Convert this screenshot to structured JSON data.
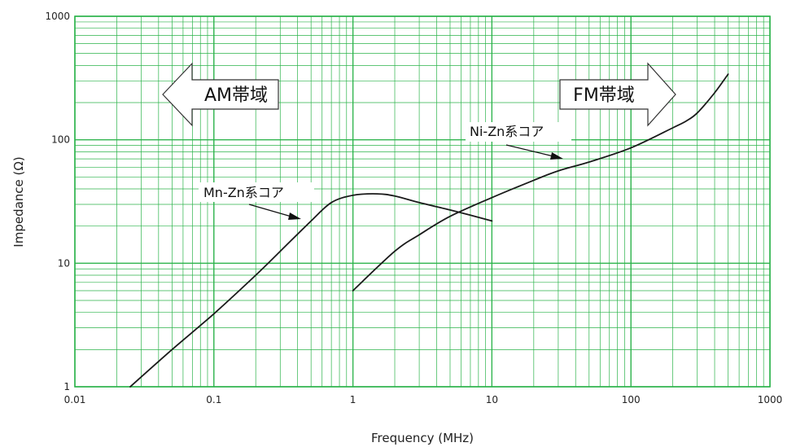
{
  "chart_data": {
    "type": "line",
    "title": "",
    "xlabel": "Frequency (MHz)",
    "ylabel": "Impedance (Ω)",
    "xscale": "log",
    "yscale": "log",
    "xlim": [
      0.01,
      1000
    ],
    "ylim": [
      1,
      1000
    ],
    "x_ticks": [
      "0.01",
      "0.1",
      "1",
      "10",
      "100",
      "1000"
    ],
    "y_ticks": [
      "1",
      "10",
      "100",
      "1000"
    ],
    "grid": true,
    "grid_color": "#2bb34a",
    "line_color": "#1a1a1a",
    "series": [
      {
        "name": "Mn-Zn系コア",
        "x": [
          0.025,
          0.05,
          0.1,
          0.2,
          0.3,
          0.5,
          0.7,
          1.0,
          1.5,
          2.0,
          3.0,
          5.0,
          7.0,
          10.0
        ],
        "y": [
          1.0,
          2.0,
          3.9,
          8.0,
          12.5,
          22,
          31,
          35.5,
          36.5,
          35,
          31,
          27,
          24.5,
          22
        ]
      },
      {
        "name": "Ni-Zn系コア",
        "x": [
          1.0,
          2.0,
          3.0,
          5.0,
          10.0,
          20.0,
          30.0,
          50.0,
          100.0,
          200.0,
          250.0,
          300.0,
          400.0,
          500.0
        ],
        "y": [
          6.0,
          12.5,
          17,
          24,
          34,
          47,
          56,
          66,
          86,
          125,
          142,
          165,
          240,
          340
        ]
      }
    ],
    "annotations": [
      {
        "text": "AM帯域",
        "direction": "left"
      },
      {
        "text": "FM帯域",
        "direction": "right"
      }
    ]
  }
}
